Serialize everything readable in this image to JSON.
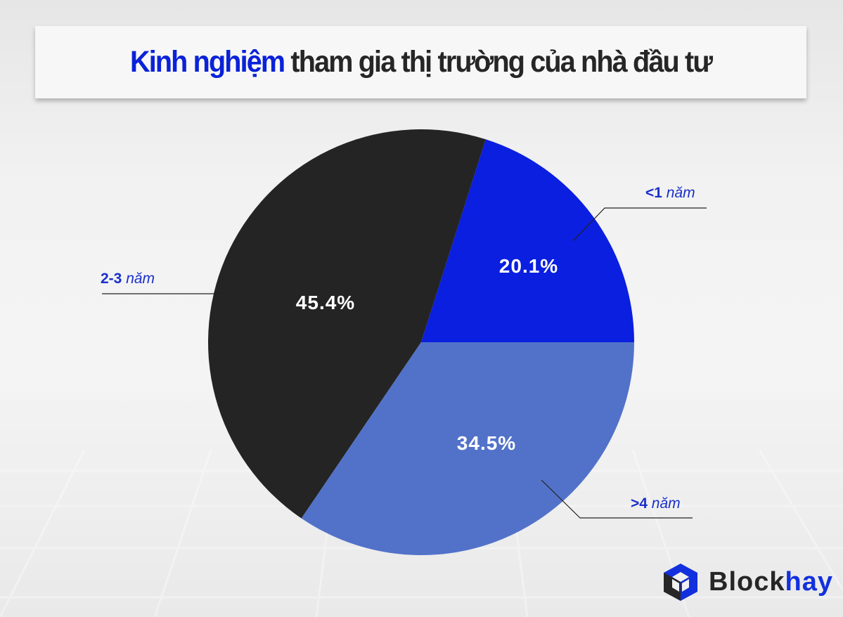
{
  "title": {
    "highlight": "Kinh nghiệm",
    "rest": "tham gia thị trường của nhà đầu tư"
  },
  "chart_data": {
    "type": "pie",
    "title": "Kinh nghiệm tham gia thị trường của nhà đầu tư",
    "slices": [
      {
        "label_bold": "<1",
        "label_unit": "năm",
        "value": 20.1,
        "value_label": "20.1%",
        "color": "#0a1fe0"
      },
      {
        "label_bold": "2-3",
        "label_unit": "năm",
        "value": 45.4,
        "value_label": "45.4%",
        "color": "#242424"
      },
      {
        "label_bold": ">4",
        "label_unit": "năm",
        "value": 34.5,
        "value_label": "34.5%",
        "color": "#5272c9"
      }
    ],
    "start_angle_deg": 0,
    "direction": "counterclockwise"
  },
  "brand": {
    "name_main": "Block",
    "name_accent": "hay",
    "primary": "#1230dd",
    "dark": "#262626"
  }
}
